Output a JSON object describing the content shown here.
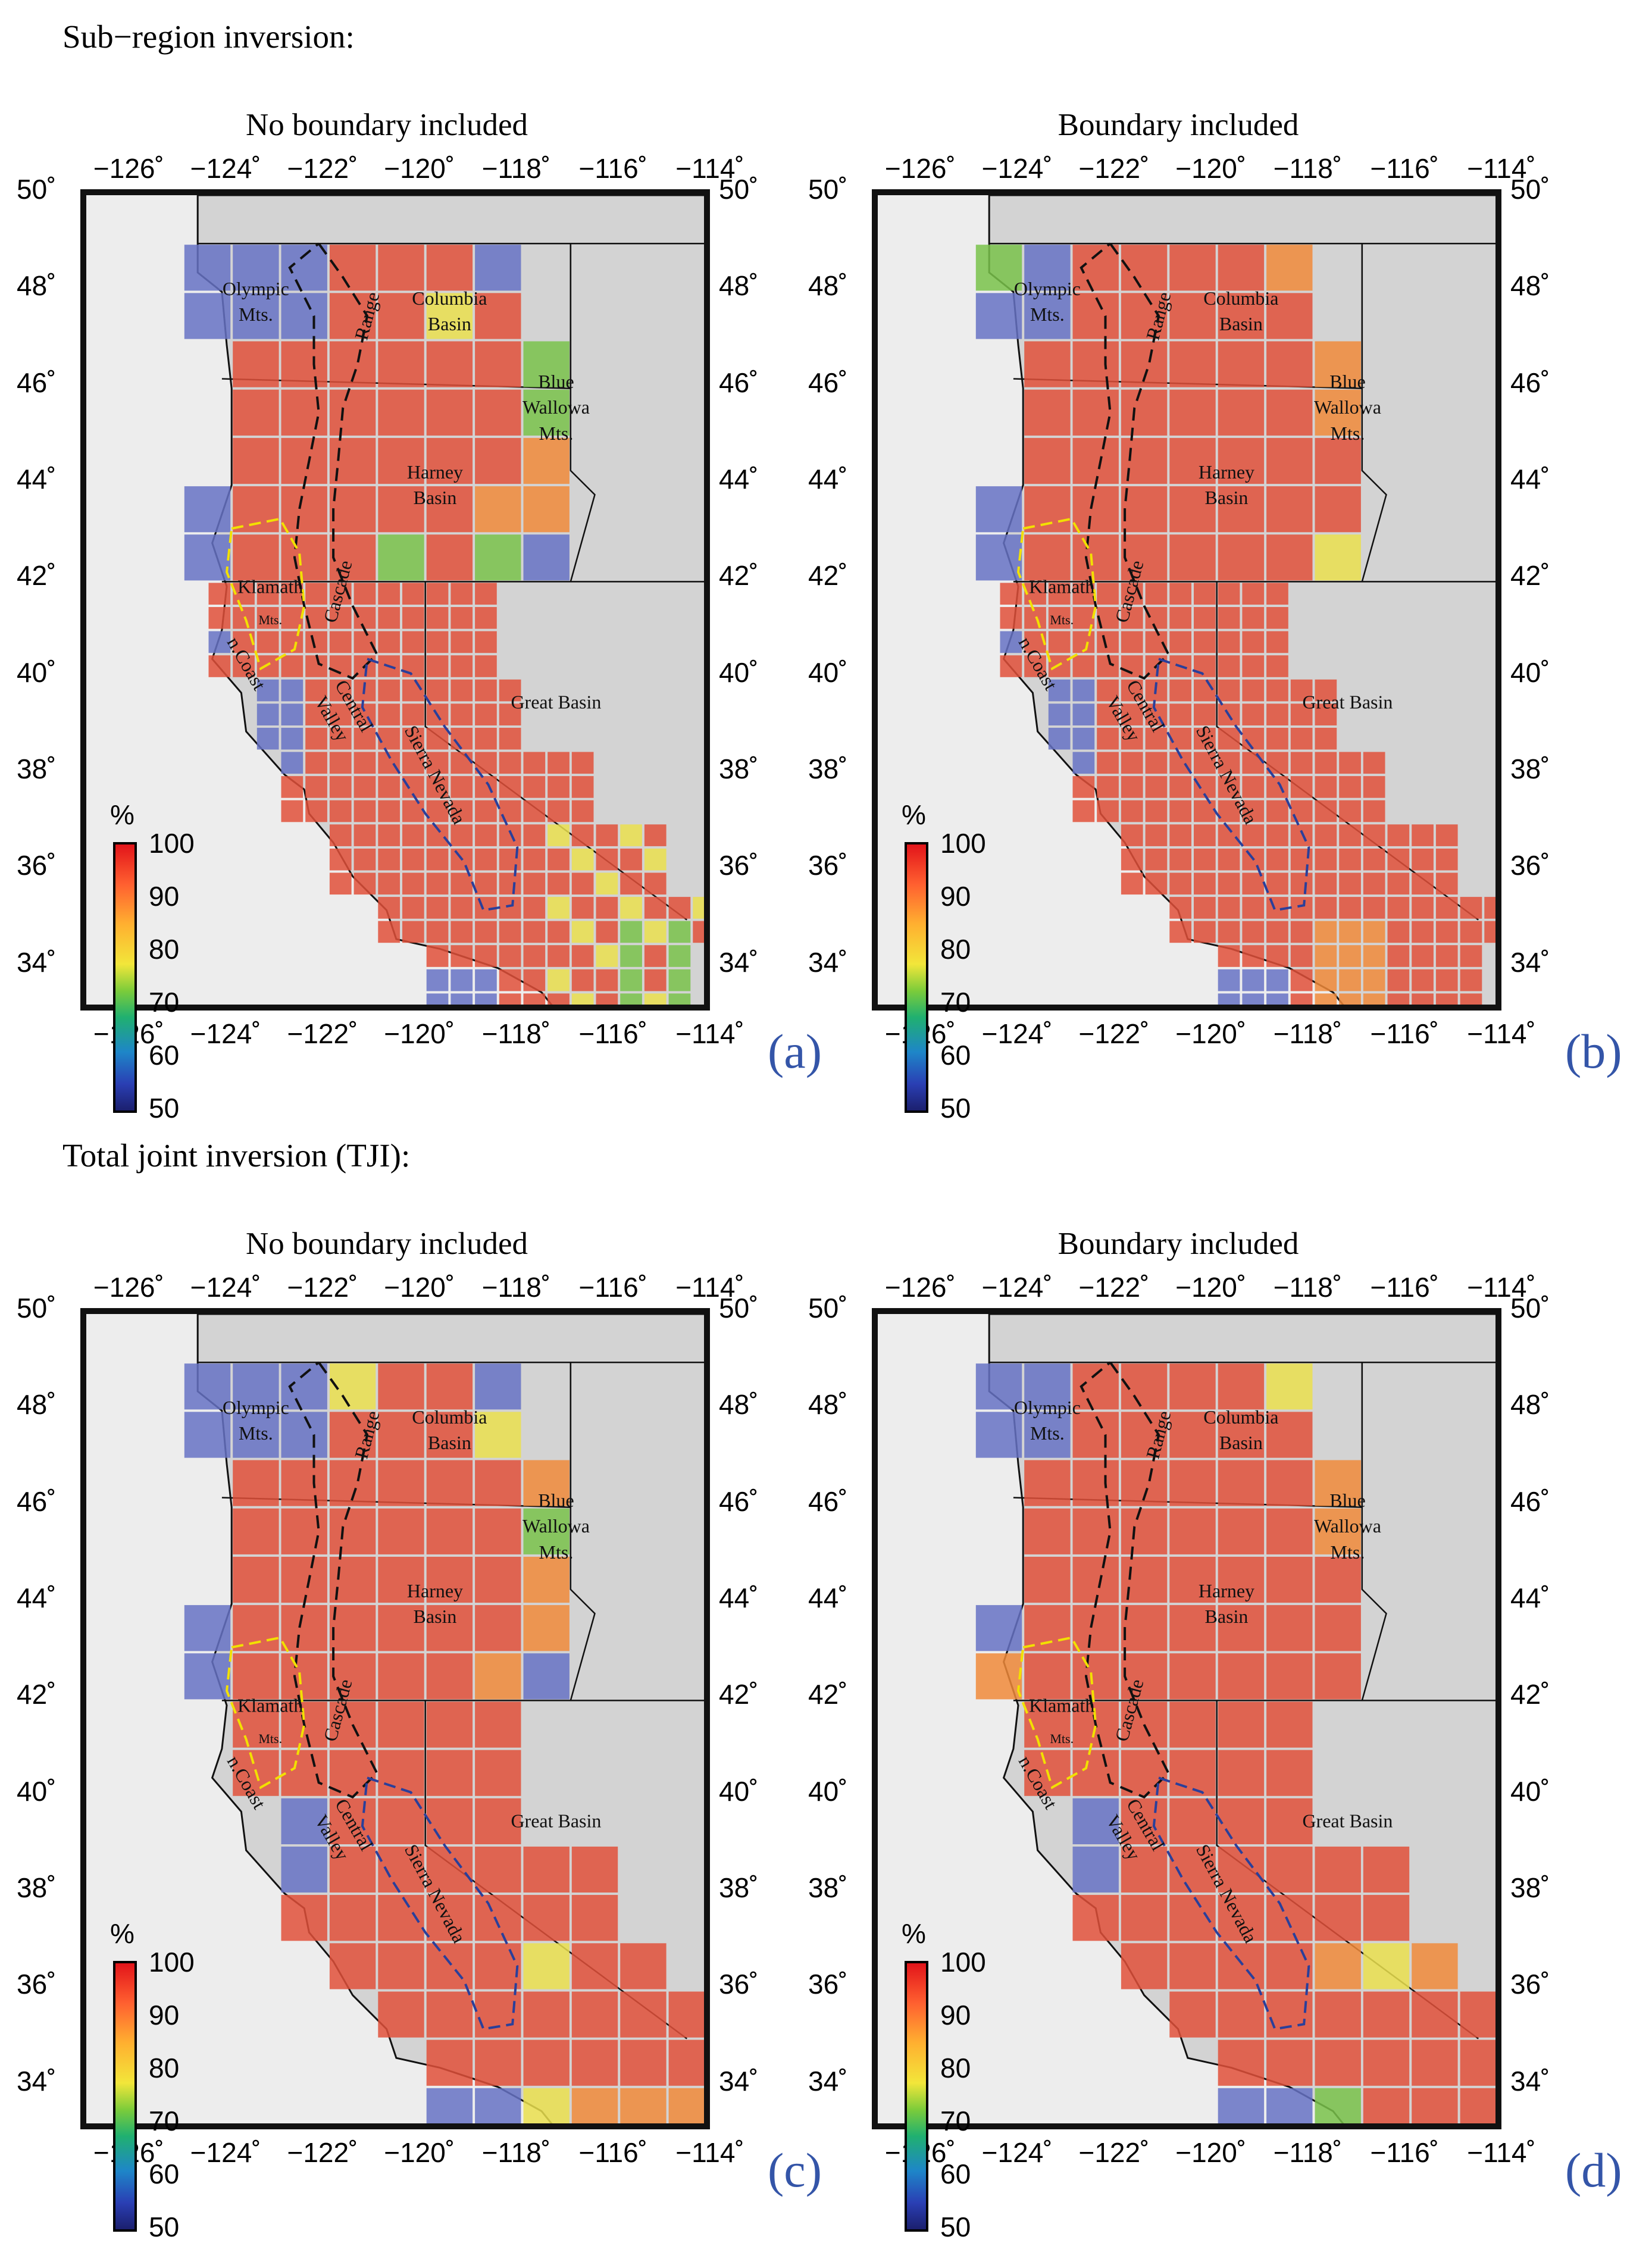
{
  "sections": [
    {
      "title": "Sub−region inversion:"
    },
    {
      "title": "Total joint inversion (TJI):"
    }
  ],
  "panels": [
    {
      "title": "No boundary included",
      "letter": "(a)"
    },
    {
      "title": "Boundary included",
      "letter": "(b)"
    },
    {
      "title": "No boundary included",
      "letter": "(c)"
    },
    {
      "title": "Boundary included",
      "letter": "(d)"
    }
  ],
  "axes": {
    "lon_ticks": [
      "−126˚",
      "−124˚",
      "−122˚",
      "−120˚",
      "−118˚",
      "−116˚",
      "−114˚"
    ],
    "lat_ticks": [
      "50˚",
      "48˚",
      "46˚",
      "44˚",
      "42˚",
      "40˚",
      "38˚",
      "36˚",
      "34˚"
    ],
    "lon_range": [
      -127,
      -114
    ],
    "lat_range": [
      33,
      50
    ]
  },
  "colorbar": {
    "unit": "%",
    "labels": [
      "100",
      "90",
      "80",
      "70",
      "60",
      "50"
    ],
    "range": [
      50,
      100
    ],
    "colormap": "jet"
  },
  "places": {
    "olympic": [
      "Olympic",
      "Mts."
    ],
    "cascade": "Cascade",
    "range": "Range",
    "columbia": [
      "Columbia",
      "Basin"
    ],
    "blue_wallowa": [
      "Blue",
      "Wallowa",
      "Mts."
    ],
    "harney": [
      "Harney",
      "Basin"
    ],
    "klamath": "Klamath",
    "klamath_mts": "Mts.",
    "n_coast": "n.Coast",
    "central_valley": [
      "Central",
      "Valley"
    ],
    "sierra_nevada": "Sierra Nevada",
    "great_basin": "Great Basin"
  },
  "colors": {
    "high": "#e0503a",
    "orange": "#f08a3a",
    "yellow": "#eadf4e",
    "green": "#79c24a",
    "blue": "#6672c4",
    "panel_letter": "#3455a8"
  }
}
